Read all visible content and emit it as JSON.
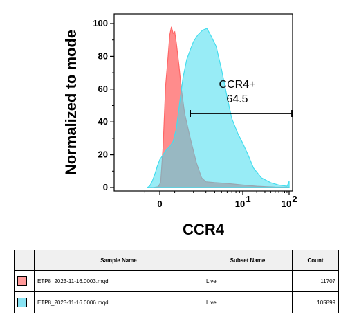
{
  "chart_data": {
    "type": "area",
    "xlabel": "CCR4",
    "ylabel": "Normalized to mode",
    "ylim": [
      0,
      100
    ],
    "yticks": [
      0,
      20,
      40,
      60,
      80,
      100
    ],
    "x_scale": "biexponential",
    "xticks": [
      {
        "label": "0",
        "value": 0
      },
      {
        "label": "10",
        "sup": "1",
        "value": 10
      },
      {
        "label": "10",
        "sup": "2",
        "value": 100
      }
    ],
    "gate": {
      "name": "CCR4+",
      "value": "64.5",
      "y": 45,
      "x_from": 1.8,
      "x_to": 100
    },
    "series": [
      {
        "name": "ETP8_2023-11-16.0003.mqd",
        "color": "#ff6666",
        "points": [
          [
            -0.7,
            0
          ],
          [
            -0.4,
            0
          ],
          [
            -0.1,
            0.5
          ],
          [
            0.05,
            3
          ],
          [
            0.2,
            25
          ],
          [
            0.35,
            62
          ],
          [
            0.5,
            80
          ],
          [
            0.6,
            93
          ],
          [
            0.7,
            98
          ],
          [
            0.8,
            94
          ],
          [
            0.9,
            95
          ],
          [
            1.0,
            88
          ],
          [
            1.15,
            75
          ],
          [
            1.3,
            60
          ],
          [
            1.5,
            45
          ],
          [
            1.8,
            30
          ],
          [
            2.2,
            15
          ],
          [
            2.6,
            6
          ],
          [
            3.0,
            3.5
          ],
          [
            4,
            3
          ],
          [
            6,
            2.5
          ],
          [
            10,
            1.5
          ],
          [
            20,
            0.8
          ],
          [
            50,
            0.3
          ],
          [
            100,
            0.2
          ]
        ]
      },
      {
        "name": "ETP8_2023-11-16.0006.mqd",
        "color": "#44ddee",
        "points": [
          [
            -0.75,
            0
          ],
          [
            -0.6,
            1
          ],
          [
            -0.45,
            4
          ],
          [
            -0.3,
            8
          ],
          [
            -0.15,
            13
          ],
          [
            0,
            17
          ],
          [
            0.2,
            20
          ],
          [
            0.4,
            23
          ],
          [
            0.6,
            25
          ],
          [
            0.8,
            28
          ],
          [
            1.0,
            36
          ],
          [
            1.2,
            52
          ],
          [
            1.4,
            67
          ],
          [
            1.6,
            78
          ],
          [
            1.8,
            84
          ],
          [
            2.0,
            89
          ],
          [
            2.3,
            93
          ],
          [
            2.7,
            96
          ],
          [
            3.1,
            97
          ],
          [
            3.5,
            93
          ],
          [
            4.2,
            86
          ],
          [
            5,
            72
          ],
          [
            6,
            55
          ],
          [
            7,
            42
          ],
          [
            8.5,
            33
          ],
          [
            10,
            27
          ],
          [
            13,
            20
          ],
          [
            17,
            12
          ],
          [
            25,
            6
          ],
          [
            40,
            3
          ],
          [
            60,
            1.5
          ],
          [
            90,
            0.8
          ],
          [
            98,
            3
          ],
          [
            100,
            4
          ]
        ]
      }
    ]
  },
  "legend_table": {
    "headers": {
      "sample": "Sample Name",
      "subset": "Subset Name",
      "count": "Count"
    },
    "rows": [
      {
        "color": "#ff9999",
        "sample": "ETP8_2023-11-16.0003.mqd",
        "subset": "Live",
        "count": "11707"
      },
      {
        "color": "#88e3f3",
        "sample": "ETP8_2023-11-16.0006.mqd",
        "subset": "Live",
        "count": "105899"
      }
    ]
  }
}
